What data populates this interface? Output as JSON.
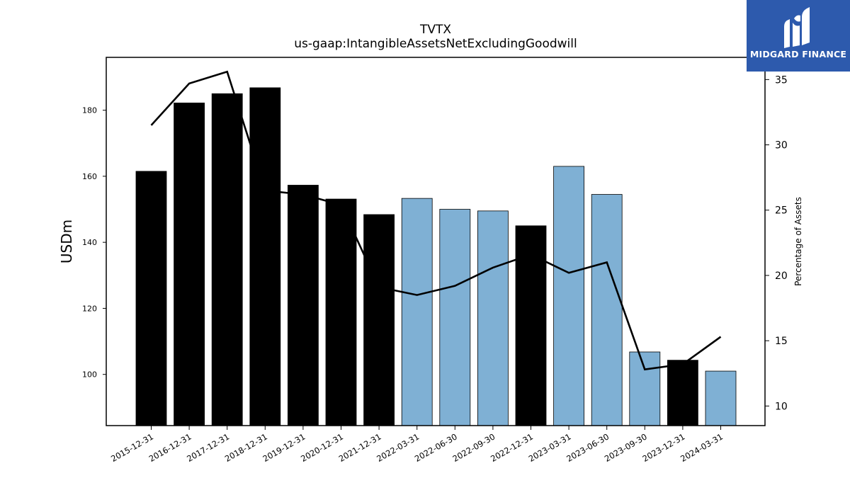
{
  "chart_data": {
    "type": "bar",
    "title": "TVTX",
    "subtitle": "us-gaap:IntangibleAssetsNetExcludingGoodwill",
    "ylabel": "USDm",
    "y2label": "Percentage of Assets",
    "categories": [
      "2015-12-31",
      "2016-12-31",
      "2017-12-31",
      "2018-12-31",
      "2019-12-31",
      "2020-12-31",
      "2021-12-31",
      "2022-03-31",
      "2022-06-30",
      "2022-09-30",
      "2022-12-31",
      "2023-03-31",
      "2023-06-30",
      "2023-09-30",
      "2023-12-31",
      "2024-03-31"
    ],
    "series": [
      {
        "values": [
          161.5,
          182.2,
          185.0,
          186.8,
          157.3,
          153.1,
          148.4,
          153.3,
          150.0,
          149.5,
          145.0,
          163.0,
          154.5,
          106.8,
          104.3,
          101.0
        ],
        "colors": [
          "#000000",
          "#000000",
          "#000000",
          "#000000",
          "#000000",
          "#000000",
          "#000000",
          "#7fb0d4",
          "#7fb0d4",
          "#7fb0d4",
          "#000000",
          "#7fb0d4",
          "#7fb0d4",
          "#7fb0d4",
          "#000000",
          "#7fb0d4"
        ]
      },
      {
        "axis": "right",
        "values": [
          31.5,
          34.7,
          35.6,
          26.5,
          26.2,
          25.4,
          19.1,
          18.5,
          19.2,
          20.6,
          21.6,
          20.2,
          21.0,
          12.8,
          13.2,
          15.3
        ],
        "color": "#000000"
      }
    ],
    "ylim": [
      84.5,
      196
    ],
    "y2lim": [
      8.5,
      36.7
    ],
    "yticks": [
      100,
      120,
      140,
      160,
      180
    ],
    "y2ticks": [
      10,
      15,
      20,
      25,
      30,
      35
    ],
    "grid": false
  },
  "logo": {
    "text": "MIDGARD FINANCE",
    "background": "#2d5aad"
  }
}
